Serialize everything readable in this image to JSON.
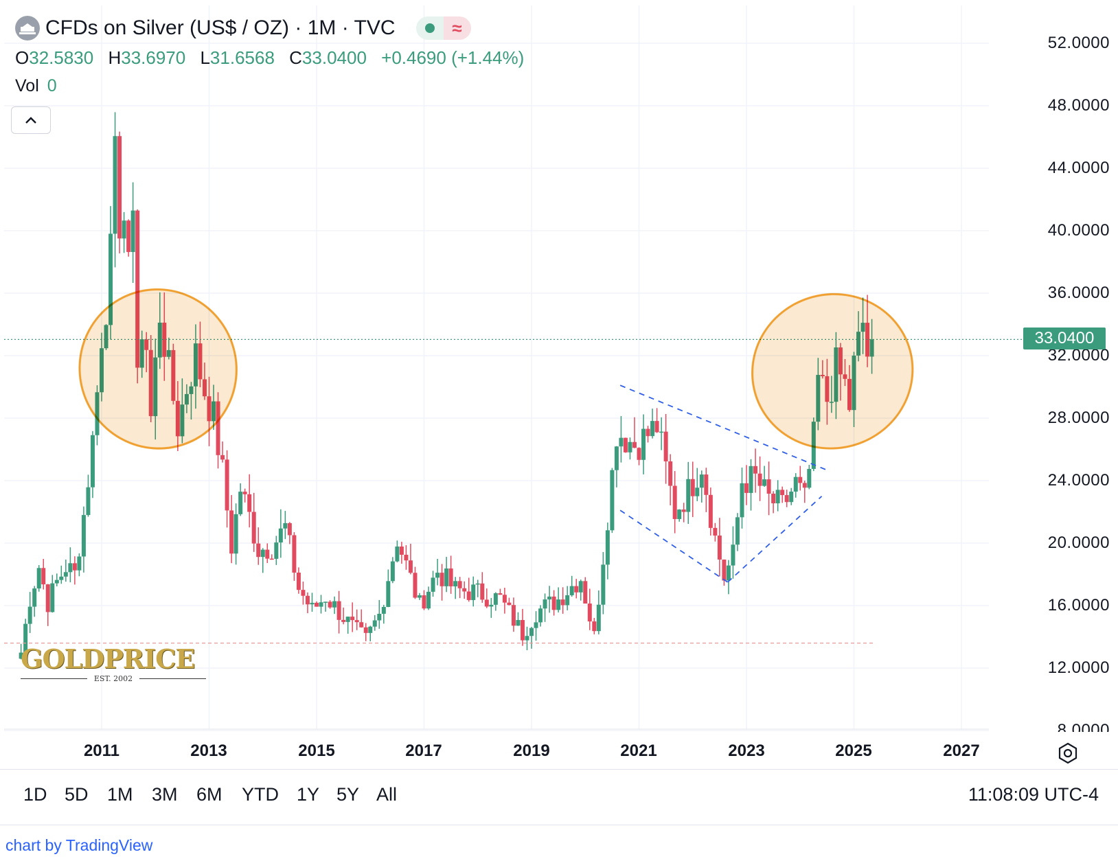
{
  "header": {
    "title": "CFDs on Silver (US$ / OZ) · 1M · TVC",
    "ohlc": [
      {
        "key": "O",
        "value": "32.5830"
      },
      {
        "key": "H",
        "value": "33.6970"
      },
      {
        "key": "L",
        "value": "31.6568"
      },
      {
        "key": "C",
        "value": "33.0400"
      }
    ],
    "change": "+0.4690 (+1.44%)",
    "vol_label": "Vol",
    "vol_value": "0",
    "status_wave": "≈"
  },
  "price_axis": {
    "labels": [
      "52.0000",
      "48.0000",
      "44.0000",
      "40.0000",
      "36.0000",
      "32.0000",
      "28.0000",
      "24.0000",
      "20.0000",
      "16.0000",
      "12.0000",
      "8.0000"
    ],
    "current_price": "33.0400"
  },
  "time_axis": {
    "labels": [
      "2011",
      "2013",
      "2015",
      "2017",
      "2019",
      "2021",
      "2023",
      "2025",
      "2027"
    ]
  },
  "range_buttons": [
    "1D",
    "5D",
    "1M",
    "3M",
    "6M",
    "YTD",
    "1Y",
    "5Y",
    "All"
  ],
  "clock": "11:08:09 UTC-4",
  "credit": {
    "prefix": "chart by ",
    "brand": "TradingView"
  },
  "logo": {
    "name": "GOLDPRICE",
    "est": "EST. 2002"
  },
  "colors": {
    "up": "#3a9c7d",
    "down": "#e24b5f",
    "annotation_fill": "#f9e2c3",
    "annotation_stroke": "#f0a030",
    "trendline": "#2f5ee8"
  },
  "chart_data": {
    "type": "candlestick",
    "title": "CFDs on Silver (US$ / OZ) · 1M · TVC",
    "interval": "1M",
    "ylim": [
      8,
      52
    ],
    "x_range": [
      "2009-07",
      "2027-06"
    ],
    "grid": true,
    "current_price": 33.04,
    "series": [
      {
        "name": "CFDs on Silver",
        "close": [
          [
            "2009-07",
            13.0
          ],
          [
            "2009-09",
            16.5
          ],
          [
            "2009-11",
            18.5
          ],
          [
            "2010-01",
            16.2
          ],
          [
            "2010-03",
            17.5
          ],
          [
            "2010-05",
            18.5
          ],
          [
            "2010-07",
            18.0
          ],
          [
            "2010-09",
            21.8
          ],
          [
            "2010-11",
            26.5
          ],
          [
            "2010-12",
            30.6
          ],
          [
            "2011-02",
            34.0
          ],
          [
            "2011-04",
            48.0
          ],
          [
            "2011-05",
            38.0
          ],
          [
            "2011-07",
            40.0
          ],
          [
            "2011-08",
            41.5
          ],
          [
            "2011-09",
            30.0
          ],
          [
            "2011-10",
            34.0
          ],
          [
            "2011-11",
            32.6
          ],
          [
            "2011-12",
            28.0
          ],
          [
            "2012-02",
            34.8
          ],
          [
            "2012-04",
            31.0
          ],
          [
            "2012-06",
            27.5
          ],
          [
            "2012-08",
            30.0
          ],
          [
            "2012-10",
            32.0
          ],
          [
            "2012-12",
            29.8
          ],
          [
            "2013-02",
            28.0
          ],
          [
            "2013-04",
            24.5
          ],
          [
            "2013-06",
            19.8
          ],
          [
            "2013-08",
            23.5
          ],
          [
            "2013-10",
            21.7
          ],
          [
            "2013-12",
            19.6
          ],
          [
            "2014-03",
            19.8
          ],
          [
            "2014-06",
            21.0
          ],
          [
            "2014-09",
            17.1
          ],
          [
            "2014-12",
            15.7
          ],
          [
            "2015-03",
            16.6
          ],
          [
            "2015-06",
            15.6
          ],
          [
            "2015-09",
            14.6
          ],
          [
            "2015-12",
            13.8
          ],
          [
            "2016-03",
            15.4
          ],
          [
            "2016-07",
            20.3
          ],
          [
            "2016-12",
            16.0
          ],
          [
            "2017-04",
            18.2
          ],
          [
            "2017-08",
            17.0
          ],
          [
            "2017-12",
            16.9
          ],
          [
            "2018-06",
            16.4
          ],
          [
            "2018-11",
            14.2
          ],
          [
            "2019-02",
            15.6
          ],
          [
            "2019-07",
            16.4
          ],
          [
            "2019-09",
            17.0
          ],
          [
            "2019-12",
            17.8
          ],
          [
            "2020-03",
            14.0
          ],
          [
            "2020-07",
            24.4
          ],
          [
            "2020-08",
            27.2
          ],
          [
            "2020-12",
            26.3
          ],
          [
            "2021-02",
            26.7
          ],
          [
            "2021-05",
            27.5
          ],
          [
            "2021-09",
            22.0
          ],
          [
            "2021-12",
            23.3
          ],
          [
            "2022-03",
            25.1
          ],
          [
            "2022-06",
            20.3
          ],
          [
            "2022-08",
            17.8
          ],
          [
            "2022-10",
            19.2
          ],
          [
            "2022-12",
            24.0
          ],
          [
            "2023-03",
            24.1
          ],
          [
            "2023-06",
            22.8
          ],
          [
            "2023-09",
            22.3
          ],
          [
            "2023-12",
            23.8
          ],
          [
            "2024-02",
            22.7
          ],
          [
            "2024-04",
            26.6
          ],
          [
            "2024-05",
            30.4
          ],
          [
            "2024-07",
            29.2
          ],
          [
            "2024-09",
            31.2
          ],
          [
            "2024-11",
            30.1
          ],
          [
            "2024-12",
            28.8
          ],
          [
            "2025-01",
            31.3
          ],
          [
            "2025-03",
            34.1
          ],
          [
            "2025-04",
            32.1
          ],
          [
            "2025-05",
            33.04
          ]
        ]
      }
    ],
    "annotations": [
      {
        "type": "ellipse",
        "around": "2011-2013 peak range"
      },
      {
        "type": "ellipse",
        "around": "2024-2025 range"
      },
      {
        "type": "dashed-trendlines",
        "from": "2020-08",
        "to": "2024-05"
      },
      {
        "type": "horizontal-dashed",
        "value": 13.6
      }
    ]
  }
}
